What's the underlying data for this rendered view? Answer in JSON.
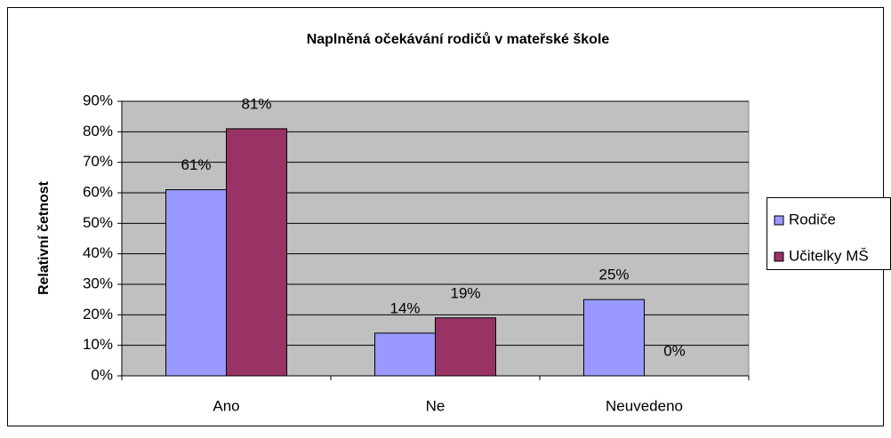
{
  "chart_data": {
    "type": "bar",
    "title": "Naplněná očekávání rodičů v mateřské škole",
    "y_label": "Relativní četnost",
    "categories": [
      "Ano",
      "Ne",
      "Neuvedeno"
    ],
    "series": [
      {
        "name": "Rodiče",
        "color": "#9999ff",
        "values": [
          61,
          14,
          25
        ],
        "value_labels": [
          "61%",
          "14%",
          "25%"
        ]
      },
      {
        "name": "Učitelky MŠ",
        "color": "#993366",
        "values": [
          81,
          19,
          0
        ],
        "value_labels": [
          "81%",
          "19%",
          "0%"
        ]
      }
    ],
    "ylim": [
      0,
      90
    ],
    "yticks": [
      {
        "value": 0,
        "label": "0%"
      },
      {
        "value": 10,
        "label": "10%"
      },
      {
        "value": 20,
        "label": "20%"
      },
      {
        "value": 30,
        "label": "30%"
      },
      {
        "value": 40,
        "label": "40%"
      },
      {
        "value": 50,
        "label": "50%"
      },
      {
        "value": 60,
        "label": "60%"
      },
      {
        "value": 70,
        "label": "70%"
      },
      {
        "value": 80,
        "label": "80%"
      },
      {
        "value": 90,
        "label": "90%"
      }
    ],
    "grid": true,
    "legend": "right"
  }
}
